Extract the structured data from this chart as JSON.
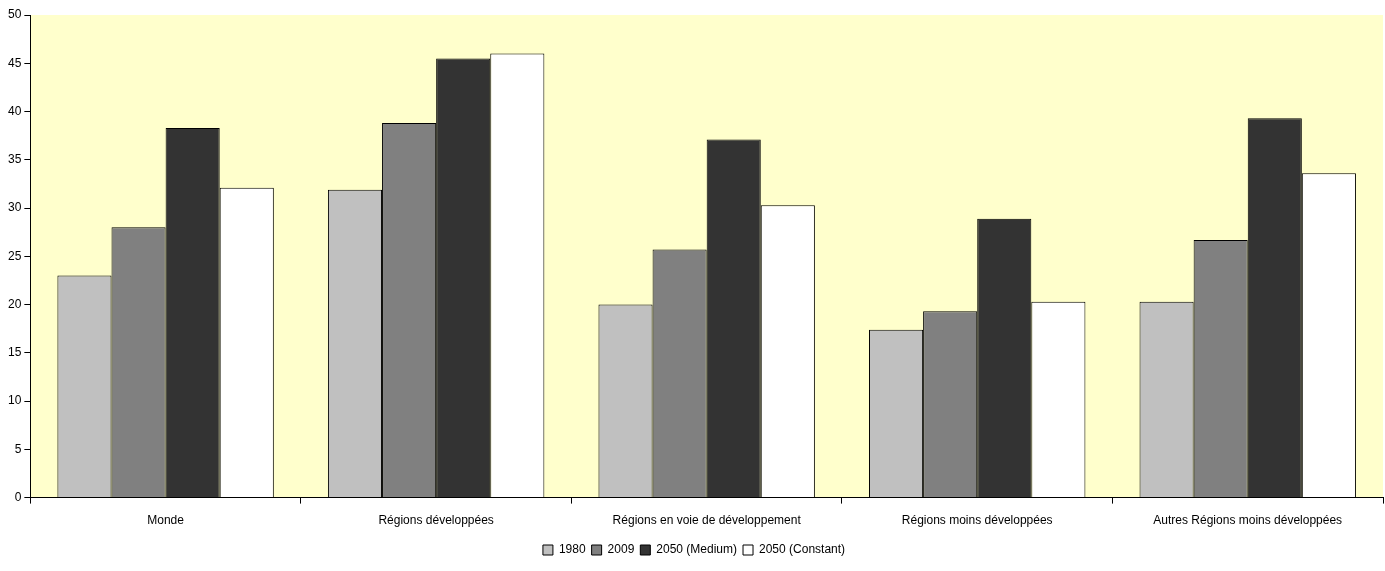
{
  "chart_data": {
    "type": "bar",
    "categories": [
      "Monde",
      "Régions développées",
      "Régions en voie de développement",
      "Régions moins développées",
      "Autres Régions moins développées"
    ],
    "series": [
      {
        "name": "1980",
        "color": "#c0c0c0",
        "values": [
          23.0,
          31.9,
          20.0,
          17.4,
          20.3
        ]
      },
      {
        "name": "2009",
        "color": "#808080",
        "values": [
          28.0,
          38.8,
          25.7,
          19.3,
          26.7
        ]
      },
      {
        "name": "2050 (Medium)",
        "color": "#333333",
        "values": [
          38.3,
          45.5,
          37.1,
          28.9,
          39.3
        ]
      },
      {
        "name": "2050 (Constant)",
        "color": "#ffffff",
        "values": [
          32.1,
          46.0,
          30.3,
          20.3,
          33.6
        ]
      }
    ],
    "ylim": [
      0,
      50
    ],
    "yticks": [
      0,
      5,
      10,
      15,
      20,
      25,
      30,
      35,
      40,
      45,
      50
    ],
    "grid": false,
    "legend": "bottom"
  }
}
